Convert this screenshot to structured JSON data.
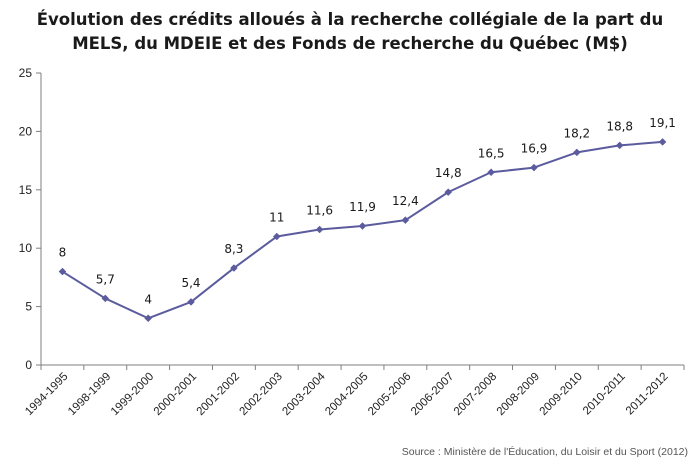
{
  "title_line1": "Évolution des crédits alloués à la recherche collégiale de la part du",
  "title_line2": "MELS, du MDEIE et des Fonds de recherche du Québec (M$)",
  "source": "Source : Ministère de l'Éducation, du Loisir et du Sport (2012)",
  "colors": {
    "line": "#5B5B9E",
    "marker": "#5B5B9E",
    "axis": "#7f7f7f"
  },
  "chart_data": {
    "type": "line",
    "categories": [
      "1994-1995",
      "1998-1999",
      "1999-2000",
      "2000-2001",
      "2001-2002",
      "2002-2003",
      "2003-2004",
      "2004-2005",
      "2005-2006",
      "2006-2007",
      "2007-2008",
      "2008-2009",
      "2009-2010",
      "2010-2011",
      "2011-2012"
    ],
    "values": [
      8,
      5.7,
      4,
      5.4,
      8.3,
      11,
      11.6,
      11.9,
      12.4,
      14.8,
      16.5,
      16.9,
      18.2,
      18.8,
      19.1
    ],
    "data_labels": [
      "8",
      "5,7",
      "4",
      "5,4",
      "8,3",
      "11",
      "11,6",
      "11,9",
      "12,4",
      "14,8",
      "16,5",
      "16,9",
      "18,2",
      "18,8",
      "19,1"
    ],
    "yticks": [
      "0",
      "5",
      "10",
      "15",
      "20",
      "25"
    ],
    "ylim": [
      0,
      25
    ],
    "grid": false,
    "legend": "none"
  }
}
